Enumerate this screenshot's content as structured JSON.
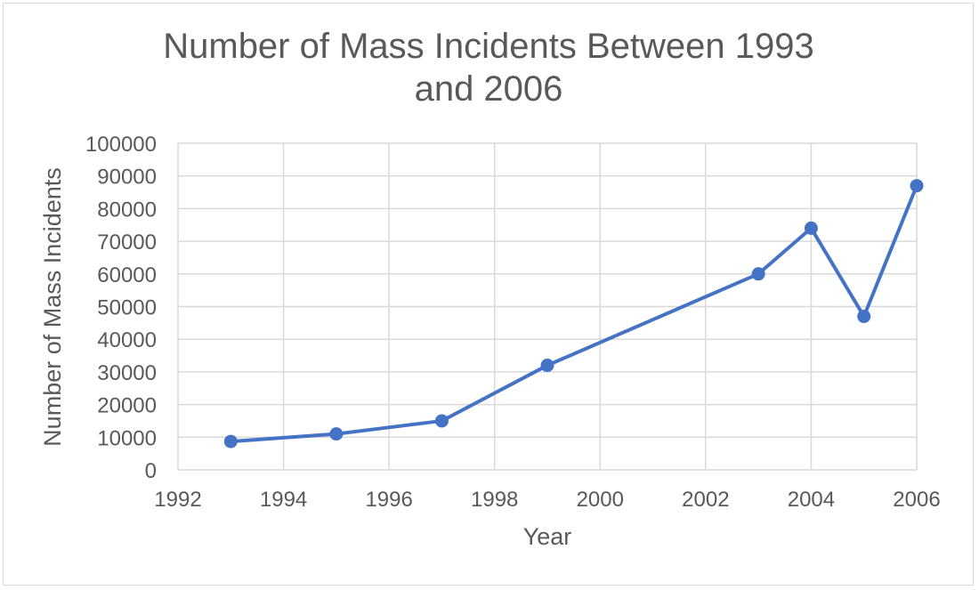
{
  "chart_data": {
    "type": "scatter",
    "title_lines": [
      "Number of Mass Incidents Between 1993",
      "and 2006"
    ],
    "xlabel": "Year",
    "ylabel": "Number of Mass Incidents",
    "xlim": [
      1992,
      2006
    ],
    "xticks": [
      1992,
      1994,
      1996,
      1998,
      2000,
      2002,
      2004,
      2006
    ],
    "ylim": [
      0,
      100000
    ],
    "yticks": [
      0,
      10000,
      20000,
      30000,
      40000,
      50000,
      60000,
      70000,
      80000,
      90000,
      100000
    ],
    "grid": true,
    "legend": "none",
    "series": [
      {
        "points": [
          {
            "x": 1993,
            "y": 8700
          },
          {
            "x": 1995,
            "y": 11000
          },
          {
            "x": 1997,
            "y": 15000
          },
          {
            "x": 1999,
            "y": 32000
          },
          {
            "x": 2003,
            "y": 60000
          },
          {
            "x": 2004,
            "y": 74000
          },
          {
            "x": 2005,
            "y": 47000
          },
          {
            "x": 2006,
            "y": 87000
          }
        ],
        "style": "line-with-markers",
        "color": "#4472c4"
      }
    ]
  }
}
